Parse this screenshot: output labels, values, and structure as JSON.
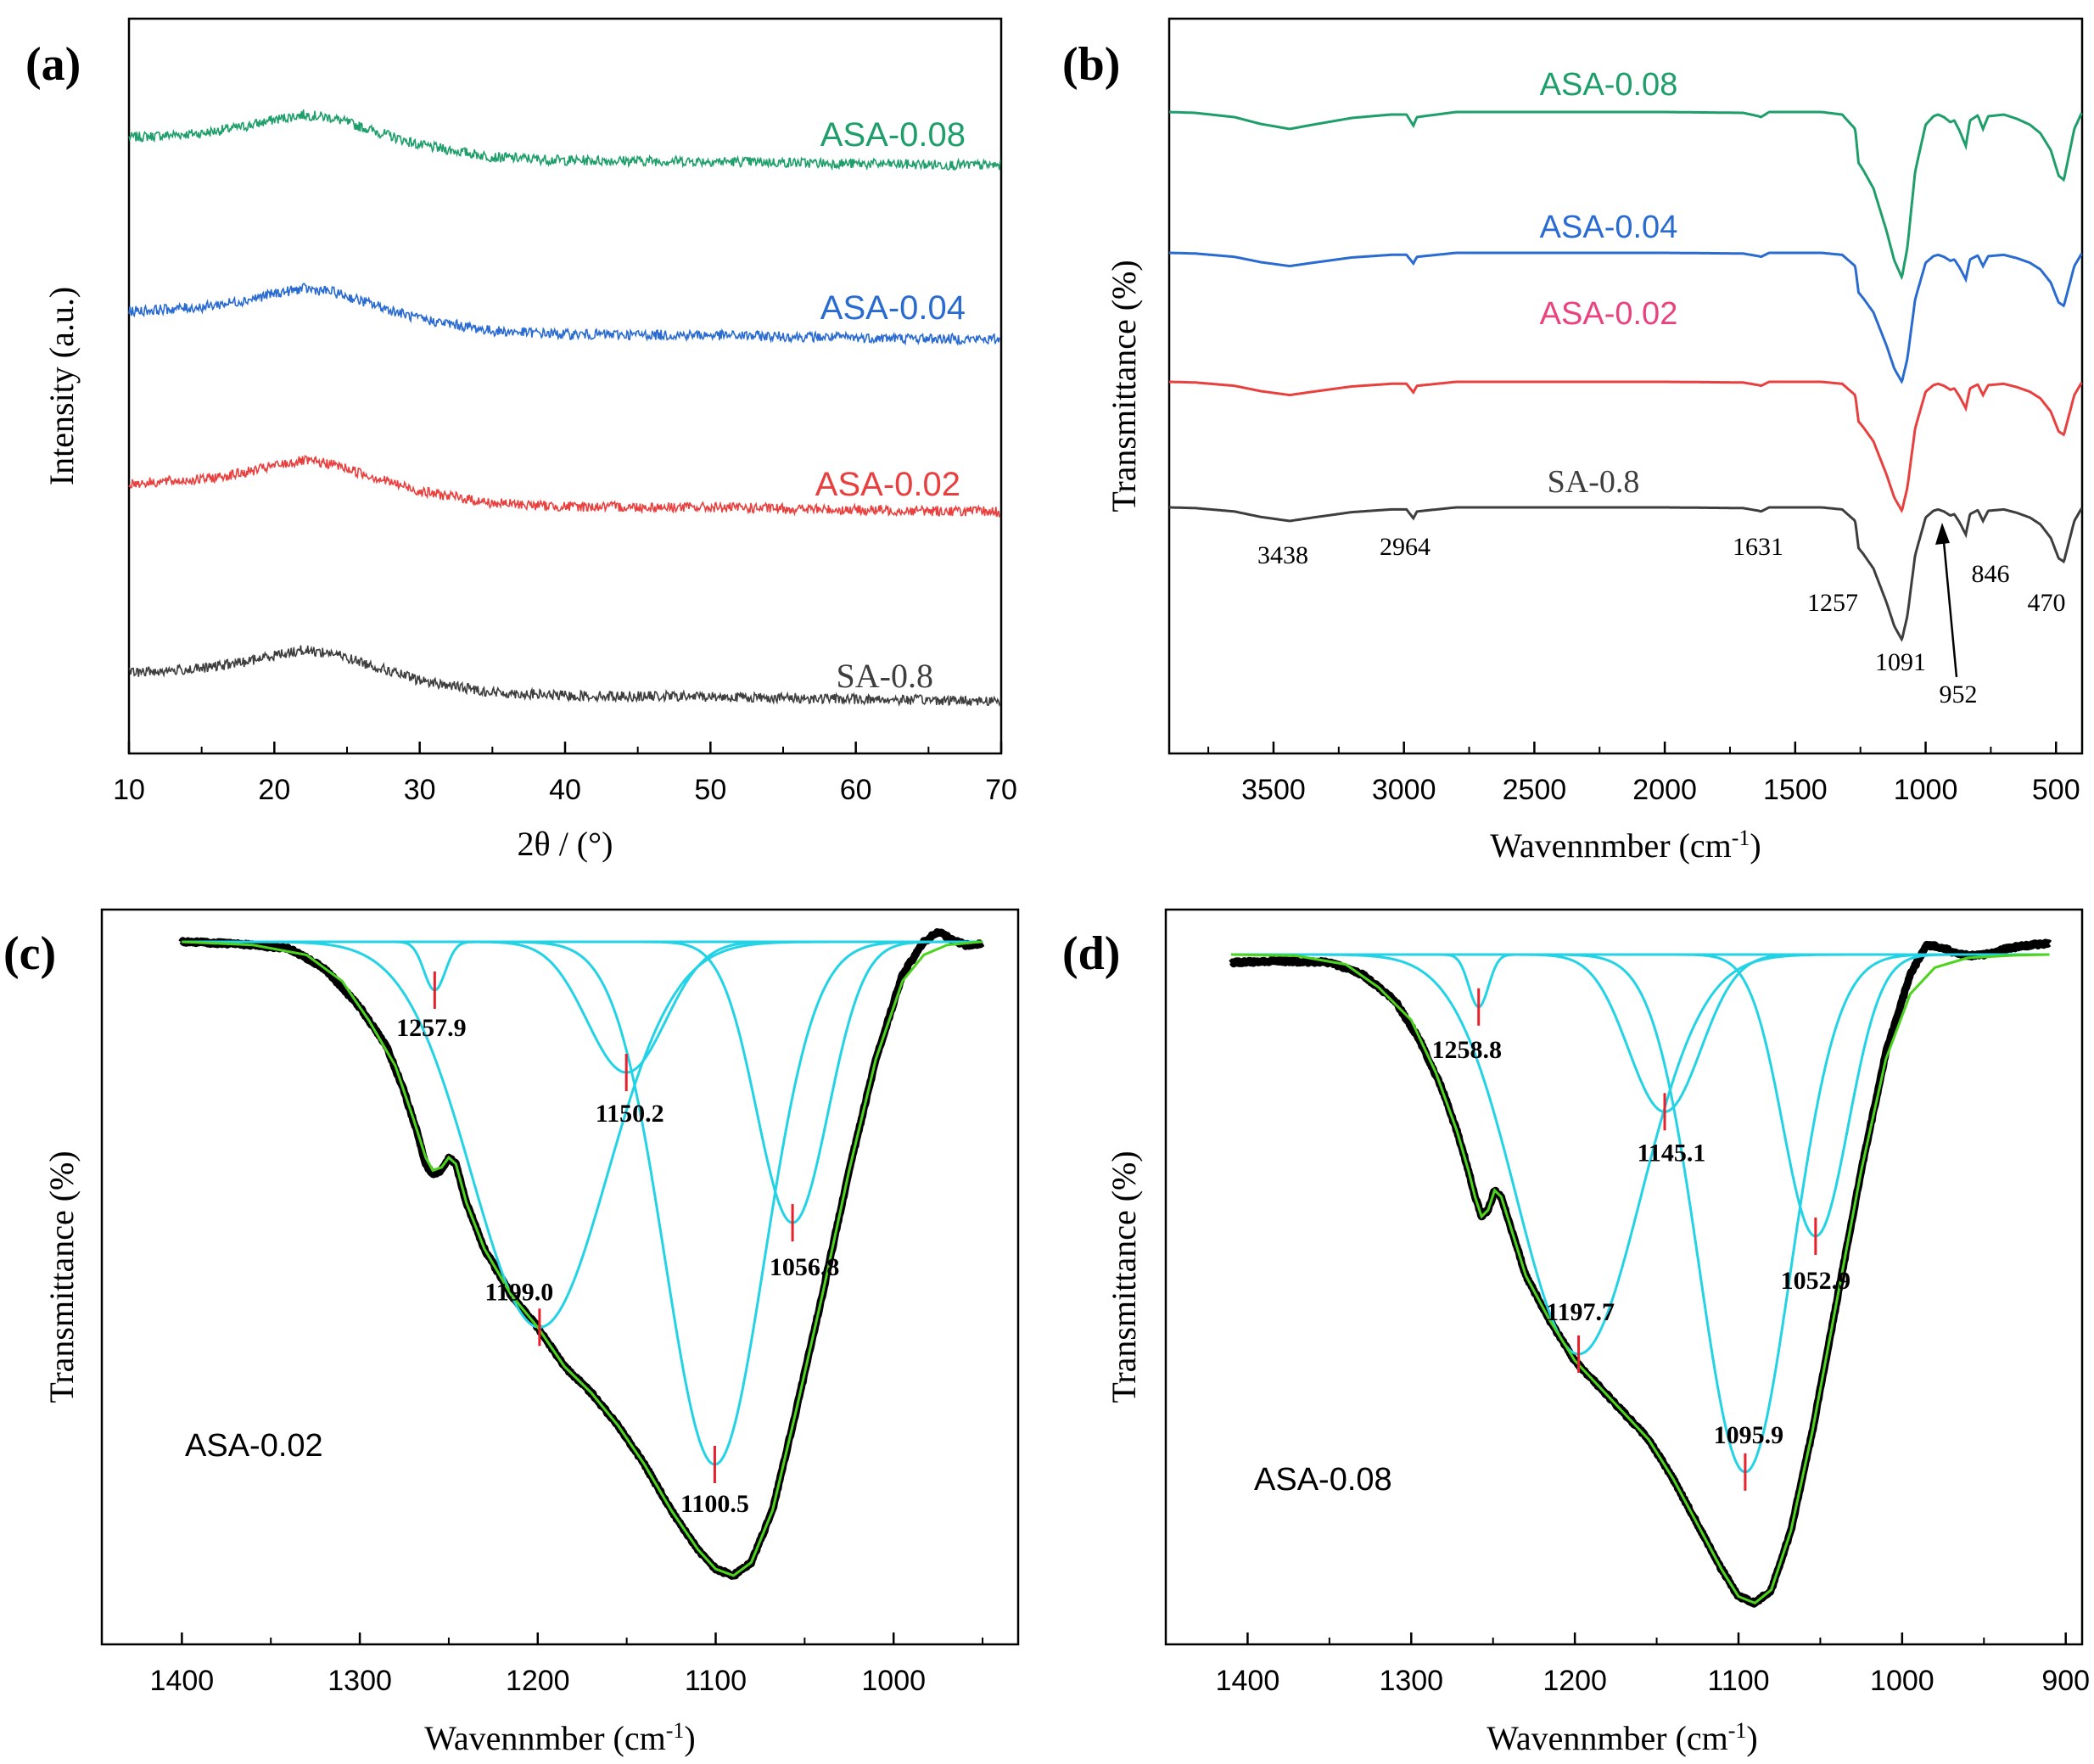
{
  "colors": {
    "axis": "#000000",
    "asa_008": "#1e9e6a",
    "asa_004": "#2a6bd1",
    "asa_002": "#e8403e",
    "sa_08": "#3e3e3e",
    "asa_002_label": "#e8437d",
    "fit_component": "#22d3e6",
    "fit_total": "#4cd41c",
    "measured": "#000000",
    "marker": "#e8202a"
  },
  "chart_data": [
    {
      "panel": "a",
      "type": "line",
      "panel_label": "(a)",
      "xlabel": "2θ / (°)",
      "ylabel": "Intensity (a.u.)",
      "xlim": [
        10,
        70
      ],
      "xticks": [
        "10",
        "20",
        "30",
        "40",
        "50",
        "60",
        "70"
      ],
      "y_ticks_shown": false,
      "series": [
        {
          "name": "ASA-0.08",
          "color": "asa_008",
          "baseline_offset": 3.0,
          "points": [
            [
              10,
              0.33
            ],
            [
              15,
              0.38
            ],
            [
              18,
              0.46
            ],
            [
              20,
              0.54
            ],
            [
              22,
              0.6
            ],
            [
              24,
              0.56
            ],
            [
              27,
              0.4
            ],
            [
              30,
              0.24
            ],
            [
              35,
              0.1
            ],
            [
              40,
              0.06
            ],
            [
              50,
              0.05
            ],
            [
              60,
              0.02
            ],
            [
              70,
              0.0
            ]
          ]
        },
        {
          "name": "ASA-0.04",
          "color": "asa_004",
          "baseline_offset": 2.0,
          "points": [
            [
              10,
              0.33
            ],
            [
              15,
              0.38
            ],
            [
              18,
              0.46
            ],
            [
              20,
              0.54
            ],
            [
              22,
              0.6
            ],
            [
              24,
              0.56
            ],
            [
              27,
              0.4
            ],
            [
              30,
              0.24
            ],
            [
              35,
              0.1
            ],
            [
              40,
              0.06
            ],
            [
              50,
              0.05
            ],
            [
              60,
              0.02
            ],
            [
              70,
              0.0
            ]
          ]
        },
        {
          "name": "ASA-0.02",
          "color": "asa_002",
          "baseline_offset": 1.0,
          "points": [
            [
              10,
              0.33
            ],
            [
              15,
              0.38
            ],
            [
              18,
              0.46
            ],
            [
              20,
              0.54
            ],
            [
              22,
              0.6
            ],
            [
              24,
              0.56
            ],
            [
              27,
              0.4
            ],
            [
              30,
              0.24
            ],
            [
              35,
              0.1
            ],
            [
              40,
              0.06
            ],
            [
              50,
              0.05
            ],
            [
              60,
              0.02
            ],
            [
              70,
              0.0
            ]
          ]
        },
        {
          "name": "SA-0.8",
          "color": "sa_08",
          "baseline_offset": 0.0,
          "points": [
            [
              10,
              0.33
            ],
            [
              15,
              0.38
            ],
            [
              18,
              0.46
            ],
            [
              20,
              0.54
            ],
            [
              22,
              0.6
            ],
            [
              24,
              0.56
            ],
            [
              27,
              0.4
            ],
            [
              30,
              0.24
            ],
            [
              35,
              0.1
            ],
            [
              40,
              0.06
            ],
            [
              50,
              0.05
            ],
            [
              60,
              0.02
            ],
            [
              70,
              0.0
            ]
          ]
        }
      ]
    },
    {
      "panel": "b",
      "type": "line",
      "panel_label": "(b)",
      "xlabel": "Wavennmber (cm",
      "xlabel_sup": "-1",
      "xlabel_close": ")",
      "ylabel": "Transmittance (%)",
      "xlim": [
        3900,
        400
      ],
      "xticks": [
        "3500",
        "3000",
        "2500",
        "2000",
        "1500",
        "1000",
        "500"
      ],
      "y_ticks_shown": false,
      "series": [
        {
          "name": "ASA-0.08",
          "color": "asa_008",
          "label_color": "asa_008"
        },
        {
          "name": "ASA-0.04",
          "color": "asa_004",
          "label_color": "asa_004"
        },
        {
          "name": "ASA-0.02",
          "color": "asa_002",
          "label_color": "asa_002_label"
        },
        {
          "name": "SA-0.8",
          "color": "sa_08",
          "label_color": "sa_08"
        }
      ],
      "spectrum_shape": [
        [
          3900,
          0
        ],
        [
          3800,
          -1
        ],
        [
          3650,
          -6
        ],
        [
          3550,
          -14
        ],
        [
          3438,
          -20
        ],
        [
          3350,
          -15
        ],
        [
          3200,
          -7
        ],
        [
          3050,
          -3
        ],
        [
          2990,
          -3
        ],
        [
          2964,
          -16
        ],
        [
          2950,
          -6
        ],
        [
          2900,
          -4
        ],
        [
          2800,
          0
        ],
        [
          2000,
          0
        ],
        [
          1700,
          -1
        ],
        [
          1640,
          -5
        ],
        [
          1631,
          -6
        ],
        [
          1600,
          0
        ],
        [
          1500,
          0
        ],
        [
          1400,
          0
        ],
        [
          1320,
          -3
        ],
        [
          1270,
          -20
        ],
        [
          1257,
          -60
        ],
        [
          1240,
          -68
        ],
        [
          1200,
          -90
        ],
        [
          1150,
          -140
        ],
        [
          1120,
          -175
        ],
        [
          1091,
          -195
        ],
        [
          1070,
          -160
        ],
        [
          1040,
          -70
        ],
        [
          1000,
          -15
        ],
        [
          970,
          -5
        ],
        [
          952,
          -3
        ],
        [
          930,
          -6
        ],
        [
          905,
          -12
        ],
        [
          890,
          -10
        ],
        [
          870,
          -22
        ],
        [
          846,
          -40
        ],
        [
          830,
          -10
        ],
        [
          800,
          -4
        ],
        [
          780,
          -20
        ],
        [
          760,
          -5
        ],
        [
          700,
          -3
        ],
        [
          650,
          -8
        ],
        [
          600,
          -15
        ],
        [
          560,
          -25
        ],
        [
          520,
          -45
        ],
        [
          490,
          -75
        ],
        [
          470,
          -80
        ],
        [
          450,
          -50
        ],
        [
          430,
          -20
        ],
        [
          400,
          0
        ]
      ],
      "annotations": [
        "3438",
        "2964",
        "1631",
        "1257",
        "1091",
        "952",
        "846",
        "470"
      ]
    },
    {
      "panel": "c",
      "type": "line",
      "panel_label": "(c)",
      "sample": "ASA-0.02",
      "xlabel": "Wavennmber (cm",
      "xlabel_sup": "-1",
      "xlabel_close": ")",
      "ylabel": "Transmittance (%)",
      "xlim": [
        1445,
        930
      ],
      "xticks": [
        "1400",
        "1300",
        "1200",
        "1100",
        "1000"
      ],
      "components": [
        {
          "center": 1257.9,
          "label": "1257.9",
          "depth": 0.074,
          "width": 6
        },
        {
          "center": 1199.0,
          "label": "1199.0",
          "depth": 0.59,
          "width": 38
        },
        {
          "center": 1150.2,
          "label": "1150.2",
          "depth": 0.2,
          "width": 22
        },
        {
          "center": 1100.5,
          "label": "1100.5",
          "depth": 0.8,
          "width": 28
        },
        {
          "center": 1056.8,
          "label": "1056.8",
          "depth": 0.43,
          "width": 20
        }
      ],
      "measured_envelope": [
        [
          1400,
          0.0
        ],
        [
          1370,
          0.003
        ],
        [
          1340,
          0.01
        ],
        [
          1320,
          0.04
        ],
        [
          1300,
          0.1
        ],
        [
          1285,
          0.16
        ],
        [
          1275,
          0.23
        ],
        [
          1268,
          0.29
        ],
        [
          1263,
          0.34
        ],
        [
          1259,
          0.356
        ],
        [
          1254,
          0.35
        ],
        [
          1250,
          0.33
        ],
        [
          1246,
          0.34
        ],
        [
          1240,
          0.4
        ],
        [
          1230,
          0.47
        ],
        [
          1215,
          0.54
        ],
        [
          1200,
          0.59
        ],
        [
          1185,
          0.65
        ],
        [
          1170,
          0.69
        ],
        [
          1155,
          0.74
        ],
        [
          1140,
          0.8
        ],
        [
          1125,
          0.87
        ],
        [
          1110,
          0.93
        ],
        [
          1100,
          0.96
        ],
        [
          1090,
          0.97
        ],
        [
          1080,
          0.95
        ],
        [
          1068,
          0.87
        ],
        [
          1055,
          0.72
        ],
        [
          1040,
          0.54
        ],
        [
          1025,
          0.35
        ],
        [
          1010,
          0.18
        ],
        [
          995,
          0.05
        ],
        [
          983,
          0.0
        ],
        [
          975,
          -0.015
        ],
        [
          968,
          -0.005
        ],
        [
          960,
          0.005
        ],
        [
          950,
          0.003
        ]
      ],
      "fit_envelope": [
        [
          1400,
          0.0
        ],
        [
          1360,
          0.005
        ],
        [
          1330,
          0.02
        ],
        [
          1310,
          0.06
        ],
        [
          1295,
          0.12
        ],
        [
          1280,
          0.19
        ],
        [
          1270,
          0.27
        ],
        [
          1263,
          0.33
        ],
        [
          1259,
          0.35
        ],
        [
          1254,
          0.345
        ],
        [
          1250,
          0.33
        ],
        [
          1246,
          0.34
        ],
        [
          1240,
          0.4
        ],
        [
          1230,
          0.47
        ],
        [
          1215,
          0.54
        ],
        [
          1200,
          0.59
        ],
        [
          1185,
          0.65
        ],
        [
          1170,
          0.69
        ],
        [
          1155,
          0.74
        ],
        [
          1140,
          0.8
        ],
        [
          1125,
          0.87
        ],
        [
          1110,
          0.93
        ],
        [
          1100,
          0.96
        ],
        [
          1090,
          0.97
        ],
        [
          1080,
          0.95
        ],
        [
          1068,
          0.87
        ],
        [
          1055,
          0.72
        ],
        [
          1040,
          0.54
        ],
        [
          1025,
          0.35
        ],
        [
          1010,
          0.18
        ],
        [
          995,
          0.06
        ],
        [
          983,
          0.02
        ],
        [
          970,
          0.005
        ],
        [
          955,
          0.001
        ],
        [
          950,
          0.0
        ]
      ]
    },
    {
      "panel": "d",
      "type": "line",
      "panel_label": "(d)",
      "sample": "ASA-0.08",
      "xlabel": "Wavennmber (cm",
      "xlabel_sup": "-1",
      "xlabel_close": ")",
      "ylabel": "Transmittance (%)",
      "xlim": [
        1450,
        890
      ],
      "xticks": [
        "1400",
        "1300",
        "1200",
        "1100",
        "1000",
        "900"
      ],
      "components": [
        {
          "center": 1258.8,
          "label": "1258.8",
          "depth": 0.08,
          "width": 6
        },
        {
          "center": 1197.7,
          "label": "1197.7",
          "depth": 0.61,
          "width": 38
        },
        {
          "center": 1145.1,
          "label": "1145.1",
          "depth": 0.24,
          "width": 22
        },
        {
          "center": 1095.9,
          "label": "1095.9",
          "depth": 0.79,
          "width": 28
        },
        {
          "center": 1052.9,
          "label": "1052.9",
          "depth": 0.43,
          "width": 20
        }
      ],
      "measured_envelope": [
        [
          1410,
          0.012
        ],
        [
          1380,
          0.01
        ],
        [
          1350,
          0.012
        ],
        [
          1330,
          0.03
        ],
        [
          1310,
          0.07
        ],
        [
          1295,
          0.13
        ],
        [
          1282,
          0.2
        ],
        [
          1272,
          0.27
        ],
        [
          1265,
          0.33
        ],
        [
          1261,
          0.37
        ],
        [
          1257,
          0.4
        ],
        [
          1253,
          0.39
        ],
        [
          1249,
          0.36
        ],
        [
          1245,
          0.37
        ],
        [
          1240,
          0.41
        ],
        [
          1230,
          0.49
        ],
        [
          1215,
          0.56
        ],
        [
          1200,
          0.62
        ],
        [
          1185,
          0.66
        ],
        [
          1170,
          0.7
        ],
        [
          1155,
          0.74
        ],
        [
          1140,
          0.8
        ],
        [
          1125,
          0.87
        ],
        [
          1110,
          0.94
        ],
        [
          1100,
          0.98
        ],
        [
          1090,
          0.99
        ],
        [
          1080,
          0.97
        ],
        [
          1068,
          0.88
        ],
        [
          1055,
          0.73
        ],
        [
          1040,
          0.53
        ],
        [
          1025,
          0.33
        ],
        [
          1010,
          0.15
        ],
        [
          995,
          0.03
        ],
        [
          985,
          -0.015
        ],
        [
          975,
          -0.01
        ],
        [
          965,
          0.0
        ],
        [
          955,
          0.002
        ],
        [
          945,
          -0.002
        ],
        [
          935,
          -0.01
        ],
        [
          920,
          -0.015
        ],
        [
          910,
          -0.017
        ]
      ],
      "fit_envelope": [
        [
          1410,
          0.0
        ],
        [
          1370,
          0.002
        ],
        [
          1340,
          0.015
        ],
        [
          1320,
          0.05
        ],
        [
          1300,
          0.1
        ],
        [
          1285,
          0.18
        ],
        [
          1272,
          0.27
        ],
        [
          1265,
          0.33
        ],
        [
          1261,
          0.37
        ],
        [
          1257,
          0.4
        ],
        [
          1253,
          0.39
        ],
        [
          1249,
          0.36
        ],
        [
          1245,
          0.37
        ],
        [
          1240,
          0.41
        ],
        [
          1230,
          0.49
        ],
        [
          1215,
          0.56
        ],
        [
          1200,
          0.62
        ],
        [
          1185,
          0.66
        ],
        [
          1170,
          0.7
        ],
        [
          1155,
          0.74
        ],
        [
          1140,
          0.8
        ],
        [
          1125,
          0.87
        ],
        [
          1110,
          0.94
        ],
        [
          1100,
          0.98
        ],
        [
          1090,
          0.99
        ],
        [
          1080,
          0.97
        ],
        [
          1068,
          0.88
        ],
        [
          1055,
          0.73
        ],
        [
          1040,
          0.53
        ],
        [
          1025,
          0.33
        ],
        [
          1010,
          0.16
        ],
        [
          995,
          0.06
        ],
        [
          980,
          0.02
        ],
        [
          960,
          0.005
        ],
        [
          930,
          0.001
        ],
        [
          910,
          0.0
        ]
      ]
    }
  ]
}
